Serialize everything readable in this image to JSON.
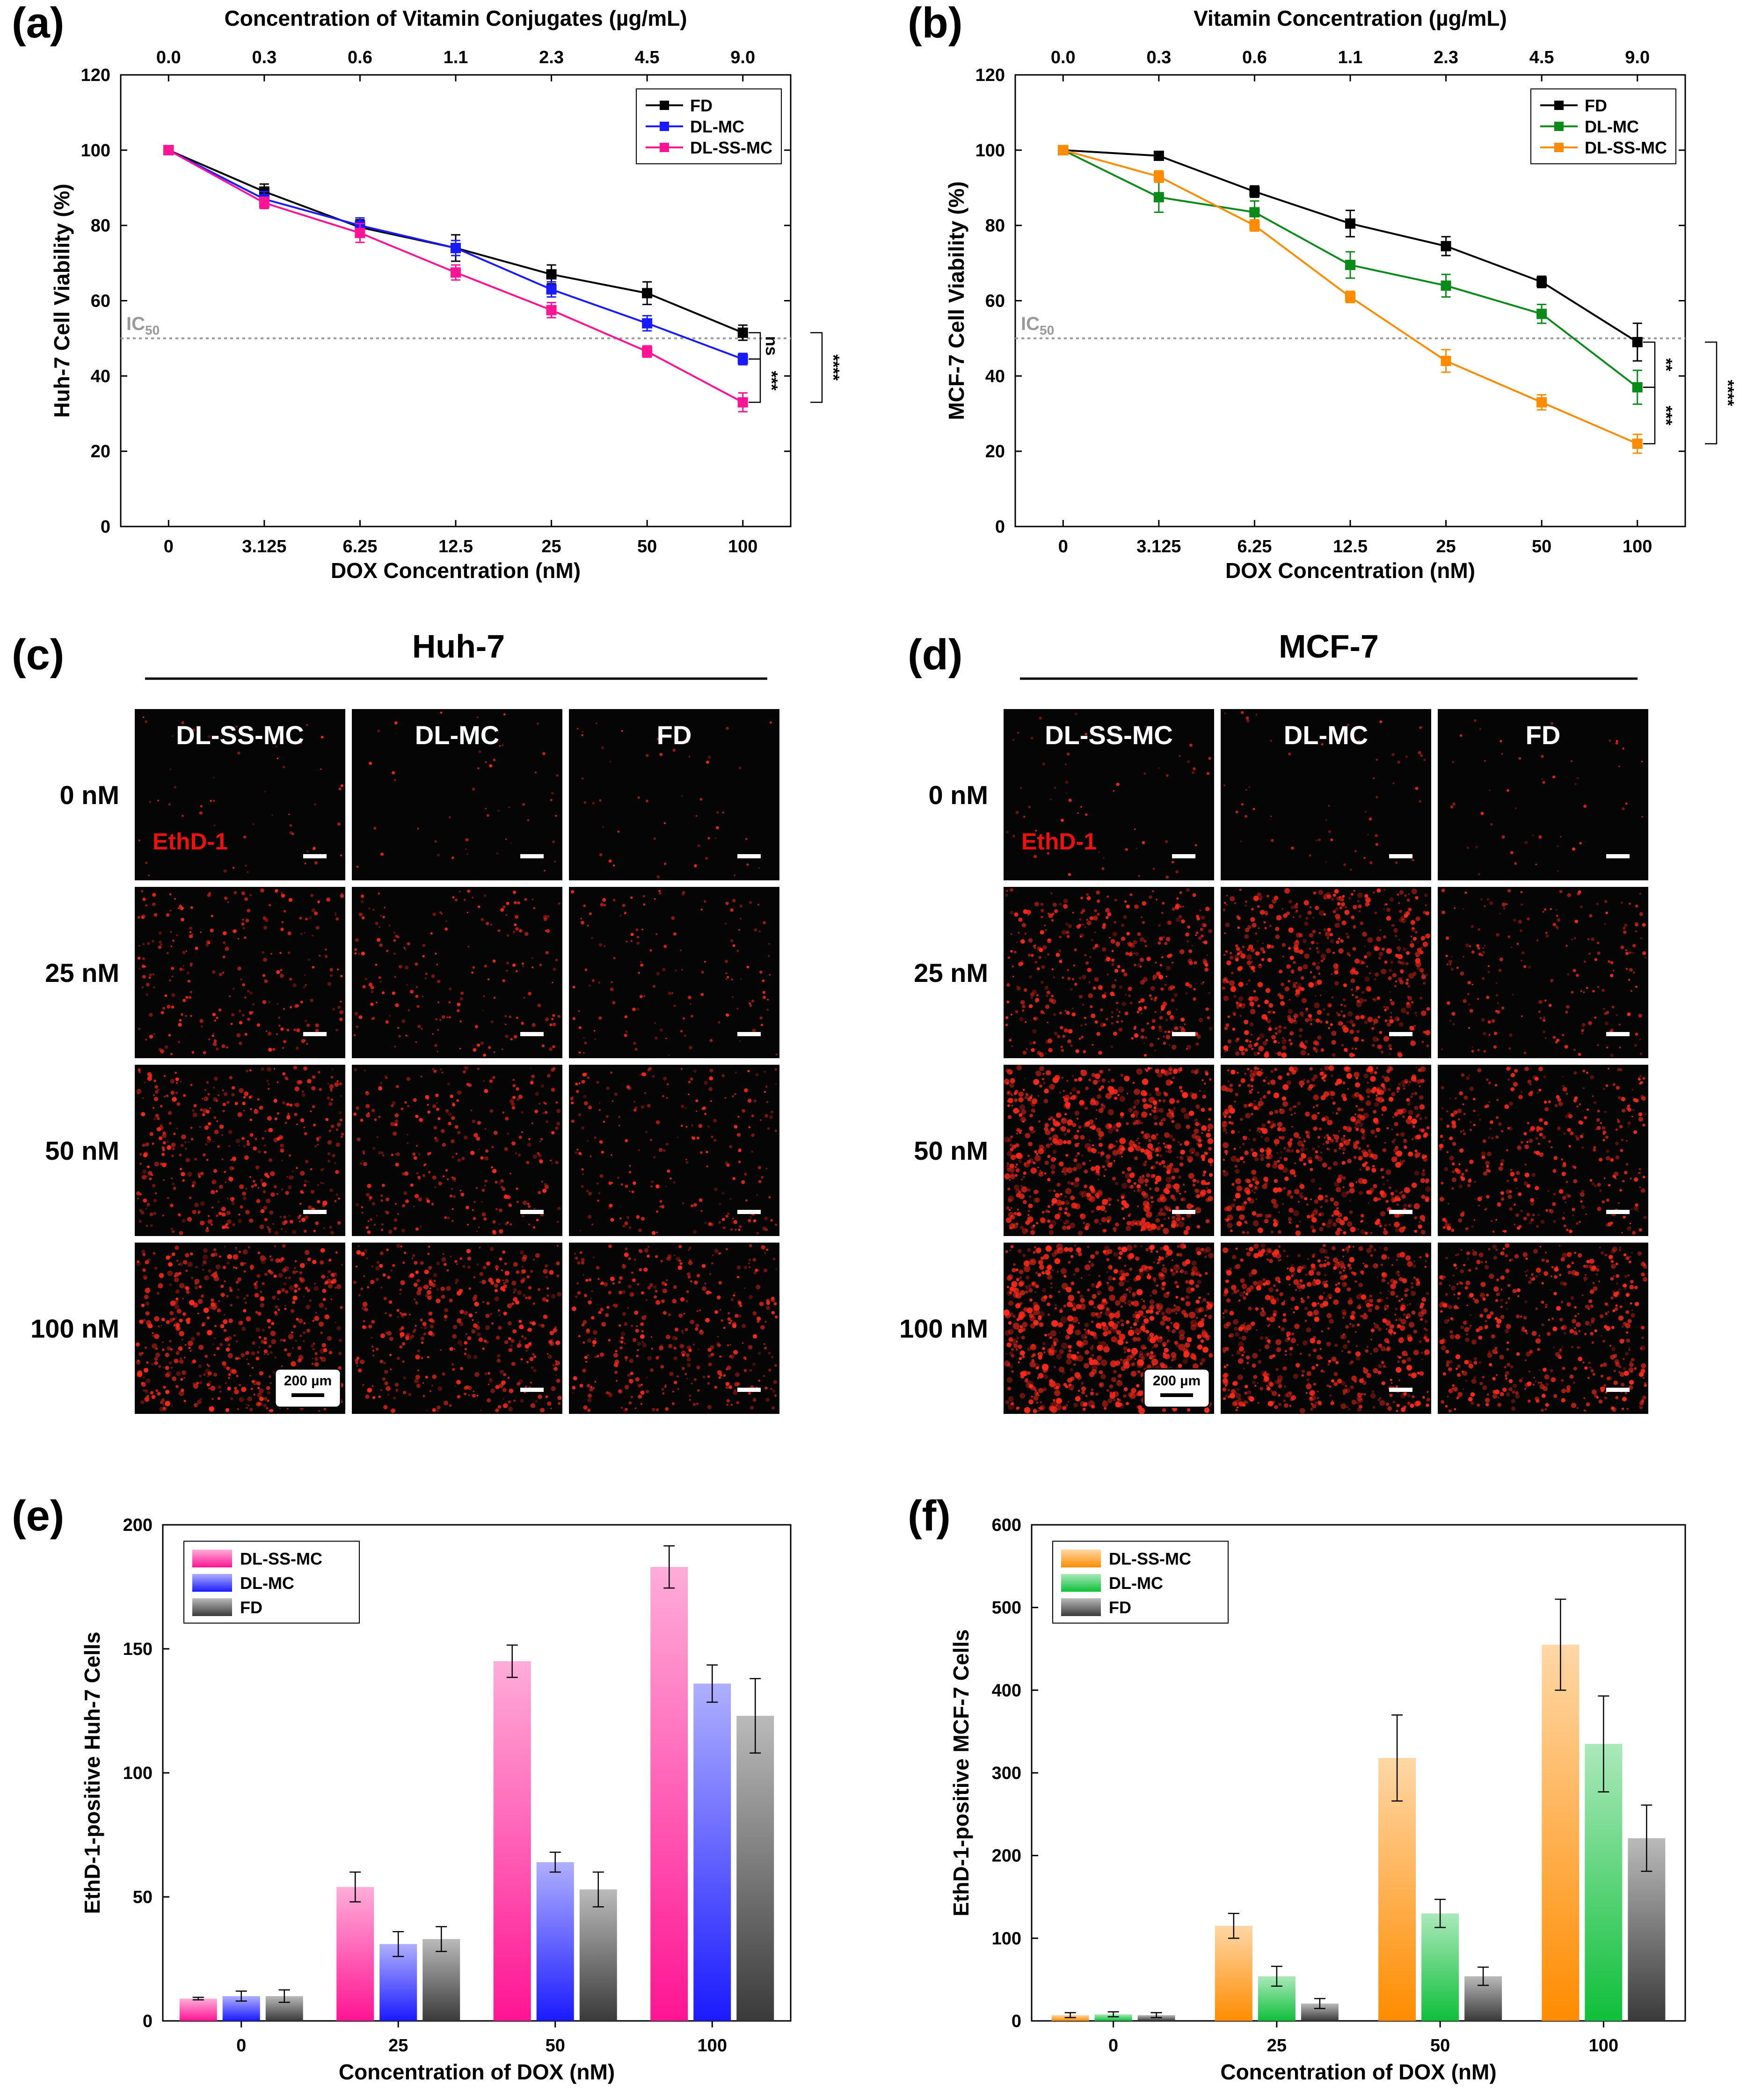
{
  "colors": {
    "FD": "#000000",
    "DL-MC_a": "#1a1aff",
    "DL-SS-MC_a": "#ff1493",
    "DL-MC_b": "#0a8a1a",
    "DL-SS-MC_b": "#ff8c00",
    "ic50_line": "#9a9a9a",
    "tile_bg": "#050505",
    "dot": "#ff2a1a"
  },
  "panels": {
    "a": "(a)",
    "b": "(b)",
    "c": "(c)",
    "d": "(d)",
    "e": "(e)",
    "f": "(f)"
  },
  "chart_data": [
    {
      "id": "a",
      "type": "line",
      "top_xlabel": "Concentration of Vitamin Conjugates (µg/mL)",
      "top_ticks": [
        "0.0",
        "0.3",
        "0.6",
        "1.1",
        "2.3",
        "4.5",
        "9.0"
      ],
      "xlabel": "DOX Concentration (nM)",
      "ylabel": "Huh-7 Cell Viability (%)",
      "categories": [
        "0",
        "3.125",
        "6.25",
        "12.5",
        "25",
        "50",
        "100"
      ],
      "yticks": [
        "0",
        "20",
        "40",
        "60",
        "80",
        "100",
        "120"
      ],
      "ylim": [
        0,
        120
      ],
      "ic50_label": "IC",
      "ic50_sub": "50",
      "ic50_value": 50,
      "legend": [
        "FD",
        "DL-MC",
        "DL-SS-MC"
      ],
      "series": [
        {
          "name": "FD",
          "color": "#000000",
          "values": [
            100,
            89,
            79.5,
            74,
            67,
            62,
            51.5
          ],
          "errors": [
            0,
            2,
            2,
            3.5,
            2.5,
            3,
            2
          ]
        },
        {
          "name": "DL-MC",
          "color": "#1a1aff",
          "values": [
            100,
            87,
            80,
            74,
            63,
            54,
            44.5
          ],
          "errors": [
            0,
            2,
            2,
            2,
            2,
            2,
            1.5
          ]
        },
        {
          "name": "DL-SS-MC",
          "color": "#ff1493",
          "values": [
            100,
            86,
            78,
            67.5,
            57.5,
            46.5,
            33
          ],
          "errors": [
            0,
            1.5,
            2.5,
            2,
            2,
            1.5,
            2.5
          ]
        }
      ],
      "significance": [
        "ns",
        "***",
        "****"
      ]
    },
    {
      "id": "b",
      "type": "line",
      "top_xlabel": "Vitamin Concentration (µg/mL)",
      "top_ticks": [
        "0.0",
        "0.3",
        "0.6",
        "1.1",
        "2.3",
        "4.5",
        "9.0"
      ],
      "xlabel": "DOX Concentration (nM)",
      "ylabel": "MCF-7 Cell Viability (%)",
      "categories": [
        "0",
        "3.125",
        "6.25",
        "12.5",
        "25",
        "50",
        "100"
      ],
      "yticks": [
        "0",
        "20",
        "40",
        "60",
        "80",
        "100",
        "120"
      ],
      "ylim": [
        0,
        120
      ],
      "ic50_label": "IC",
      "ic50_sub": "50",
      "ic50_value": 50,
      "legend": [
        "FD",
        "DL-MC",
        "DL-SS-MC"
      ],
      "series": [
        {
          "name": "FD",
          "color": "#000000",
          "values": [
            100,
            98.5,
            89,
            80.5,
            74.5,
            65,
            49
          ],
          "errors": [
            0,
            1,
            1.5,
            3.5,
            2.5,
            1.5,
            5
          ]
        },
        {
          "name": "DL-MC",
          "color": "#0a8a1a",
          "values": [
            100,
            87.5,
            83.5,
            69.5,
            64,
            56.5,
            37
          ],
          "errors": [
            0,
            4,
            3,
            3.5,
            3,
            2.5,
            4.5
          ]
        },
        {
          "name": "DL-SS-MC",
          "color": "#ff8c00",
          "values": [
            100,
            93,
            80,
            61,
            44,
            33,
            22
          ],
          "errors": [
            0,
            1.5,
            1.5,
            1.5,
            3,
            2,
            2.5
          ]
        }
      ],
      "significance": [
        "**",
        "***",
        "****"
      ]
    },
    {
      "id": "e",
      "type": "bar",
      "xlabel": "Concentration of DOX (nM)",
      "ylabel": "EthD-1-positive Huh-7 Cells",
      "categories": [
        "0",
        "25",
        "50",
        "100"
      ],
      "yticks": [
        "0",
        "50",
        "100",
        "150",
        "200"
      ],
      "ylim": [
        0,
        200
      ],
      "legend": [
        "DL-SS-MC",
        "DL-MC",
        "FD"
      ],
      "series": [
        {
          "name": "DL-SS-MC",
          "color": "#ff1493",
          "values": [
            9,
            54,
            145,
            183
          ],
          "errors": [
            0.5,
            6,
            6.5,
            8.5
          ]
        },
        {
          "name": "DL-MC",
          "color": "#1a1aff",
          "values": [
            10,
            31,
            64,
            136
          ],
          "errors": [
            2,
            5,
            4,
            7.5
          ]
        },
        {
          "name": "FD",
          "color": "#3a3a3a",
          "values": [
            10,
            33,
            53,
            123
          ],
          "errors": [
            2.5,
            5,
            7,
            15
          ]
        }
      ]
    },
    {
      "id": "f",
      "type": "bar",
      "xlabel": "Concentration of DOX (nM)",
      "ylabel": "EthD-1-positive MCF-7 Cells",
      "categories": [
        "0",
        "25",
        "50",
        "100"
      ],
      "yticks": [
        "0",
        "100",
        "200",
        "300",
        "400",
        "500",
        "600"
      ],
      "ylim": [
        0,
        600
      ],
      "legend": [
        "DL-SS-MC",
        "DL-MC",
        "FD"
      ],
      "series": [
        {
          "name": "DL-SS-MC",
          "color": "#ff8c00",
          "values": [
            7,
            115,
            318,
            455
          ],
          "errors": [
            3,
            15,
            52,
            55
          ]
        },
        {
          "name": "DL-MC",
          "color": "#0fbf3a",
          "values": [
            8,
            54,
            130,
            335
          ],
          "errors": [
            3,
            12,
            17,
            58
          ]
        },
        {
          "name": "FD",
          "color": "#3a3a3a",
          "values": [
            7,
            21,
            54,
            221
          ],
          "errors": [
            3,
            6,
            11,
            40
          ]
        }
      ]
    }
  ],
  "micrographs": [
    {
      "id": "c",
      "title": "Huh-7",
      "columns": [
        "DL-SS-MC",
        "DL-MC",
        "FD"
      ],
      "rows": [
        "0 nM",
        "25 nM",
        "50 nM",
        "100 nM"
      ],
      "stain": "EthD-1",
      "scale_bar": "200 µm",
      "intensity": [
        [
          0.03,
          0.02,
          0.02
        ],
        [
          0.25,
          0.18,
          0.12
        ],
        [
          0.45,
          0.3,
          0.22
        ],
        [
          0.6,
          0.45,
          0.4
        ]
      ]
    },
    {
      "id": "d",
      "title": "MCF-7",
      "columns": [
        "DL-SS-MC",
        "DL-MC",
        "FD"
      ],
      "rows": [
        "0 nM",
        "25 nM",
        "50 nM",
        "100 nM"
      ],
      "stain": "EthD-1",
      "scale_bar": "200 µm",
      "intensity": [
        [
          0.03,
          0.03,
          0.02
        ],
        [
          0.45,
          0.65,
          0.2
        ],
        [
          0.85,
          0.75,
          0.4
        ],
        [
          0.95,
          0.7,
          0.55
        ]
      ]
    }
  ]
}
